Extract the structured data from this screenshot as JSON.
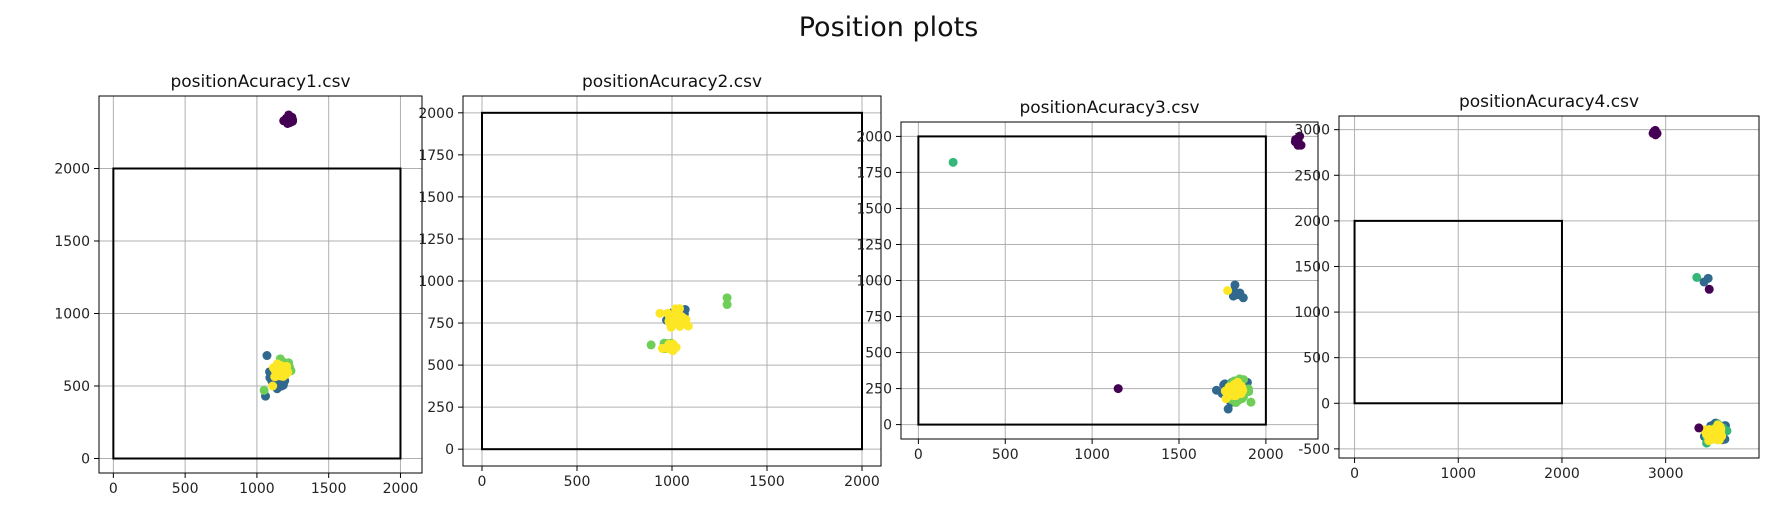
{
  "suptitle": "Position plots",
  "colors": {
    "viridis_dark": "#440154",
    "viridis_blue": "#31688e",
    "viridis_teal": "#35b779",
    "viridis_green": "#6ece58",
    "viridis_yellow": "#fde725",
    "grid": "#b0b0b0",
    "frame": "#000000"
  },
  "chart_data": [
    {
      "type": "scatter",
      "title": "positionAcuracy1.csv",
      "xlim": [
        -100,
        2150
      ],
      "ylim": [
        -100,
        2500
      ],
      "xticks": [
        0,
        500,
        1000,
        1500,
        2000
      ],
      "yticks": [
        0,
        500,
        1000,
        1500,
        2000
      ],
      "grid": true,
      "boundary_rect": [
        [
          0,
          0
        ],
        [
          2000,
          2000
        ]
      ],
      "clusters": [
        {
          "center": [
            1230,
            2340
          ],
          "spread": 35,
          "n": 14,
          "color": "#440154"
        },
        {
          "center": [
            1150,
            560
          ],
          "spread": 50,
          "n": 40,
          "color": "#31688e"
        },
        {
          "center": [
            1180,
            620
          ],
          "spread": 45,
          "n": 35,
          "color": "#6ece58"
        },
        {
          "center": [
            1170,
            600
          ],
          "spread": 40,
          "n": 40,
          "color": "#fde725"
        }
      ],
      "points": [
        {
          "x": 1070,
          "y": 710,
          "color": "#31688e"
        },
        {
          "x": 1060,
          "y": 430,
          "color": "#31688e"
        },
        {
          "x": 1050,
          "y": 470,
          "color": "#6ece58"
        },
        {
          "x": 1110,
          "y": 500,
          "color": "#fde725"
        }
      ]
    },
    {
      "type": "scatter",
      "title": "positionAcuracy2.csv",
      "xlim": [
        -100,
        2100
      ],
      "ylim": [
        -100,
        2100
      ],
      "xticks": [
        0,
        500,
        1000,
        1500,
        2000
      ],
      "yticks": [
        0,
        250,
        500,
        750,
        1000,
        1250,
        1500,
        1750,
        2000
      ],
      "grid": true,
      "boundary_rect": [
        [
          0,
          0
        ],
        [
          2000,
          2000
        ]
      ],
      "clusters": [
        {
          "center": [
            1030,
            790
          ],
          "spread": 45,
          "n": 40,
          "color": "#31688e"
        },
        {
          "center": [
            1020,
            780
          ],
          "spread": 40,
          "n": 40,
          "color": "#fde725"
        },
        {
          "center": [
            960,
            615
          ],
          "spread": 30,
          "n": 10,
          "color": "#6ece58"
        },
        {
          "center": [
            980,
            610
          ],
          "spread": 25,
          "n": 8,
          "color": "#fde725"
        }
      ],
      "points": [
        {
          "x": 1290,
          "y": 900,
          "color": "#6ece58"
        },
        {
          "x": 1290,
          "y": 860,
          "color": "#6ece58"
        },
        {
          "x": 890,
          "y": 620,
          "color": "#6ece58"
        }
      ]
    },
    {
      "type": "scatter",
      "title": "positionAcuracy3.csv",
      "xlim": [
        -100,
        2300
      ],
      "ylim": [
        -100,
        2100
      ],
      "xticks": [
        0,
        500,
        1000,
        1500,
        2000
      ],
      "yticks": [
        0,
        250,
        500,
        750,
        1000,
        1250,
        1500,
        1750,
        2000
      ],
      "grid": true,
      "boundary_rect": [
        [
          0,
          0
        ],
        [
          2000,
          2000
        ]
      ],
      "clusters": [
        {
          "center": [
            2190,
            1960
          ],
          "spread": 40,
          "n": 8,
          "color": "#440154"
        },
        {
          "center": [
            1820,
            230
          ],
          "spread": 60,
          "n": 45,
          "color": "#31688e"
        },
        {
          "center": [
            1840,
            240
          ],
          "spread": 55,
          "n": 40,
          "color": "#6ece58"
        },
        {
          "center": [
            1830,
            235
          ],
          "spread": 50,
          "n": 40,
          "color": "#fde725"
        },
        {
          "center": [
            1830,
            910
          ],
          "spread": 30,
          "n": 8,
          "color": "#31688e"
        }
      ],
      "points": [
        {
          "x": 200,
          "y": 1820,
          "color": "#35b779"
        },
        {
          "x": 1150,
          "y": 250,
          "color": "#440154"
        },
        {
          "x": 1780,
          "y": 930,
          "color": "#fde725"
        },
        {
          "x": 1870,
          "y": 880,
          "color": "#31688e"
        }
      ]
    },
    {
      "type": "scatter",
      "title": "positionAcuracy4.csv",
      "xlim": [
        -150,
        3900
      ],
      "ylim": [
        -600,
        3150
      ],
      "xticks": [
        0,
        1000,
        2000,
        3000
      ],
      "yticks": [
        -500,
        0,
        500,
        1000,
        1500,
        2000,
        2500,
        3000
      ],
      "grid": true,
      "boundary_rect": [
        [
          0,
          0
        ],
        [
          2000,
          2000
        ]
      ],
      "clusters": [
        {
          "center": [
            2900,
            2970
          ],
          "spread": 30,
          "n": 8,
          "color": "#440154"
        },
        {
          "center": [
            3500,
            -320
          ],
          "spread": 80,
          "n": 45,
          "color": "#31688e"
        },
        {
          "center": [
            3490,
            -330
          ],
          "spread": 70,
          "n": 40,
          "color": "#35b779"
        },
        {
          "center": [
            3480,
            -330
          ],
          "spread": 65,
          "n": 40,
          "color": "#fde725"
        }
      ],
      "points": [
        {
          "x": 3300,
          "y": 1380,
          "color": "#35b779"
        },
        {
          "x": 3410,
          "y": 1370,
          "color": "#31688e"
        },
        {
          "x": 3420,
          "y": 1250,
          "color": "#440154"
        },
        {
          "x": 3320,
          "y": -270,
          "color": "#440154"
        },
        {
          "x": 3370,
          "y": 1330,
          "color": "#31688e"
        }
      ]
    }
  ]
}
